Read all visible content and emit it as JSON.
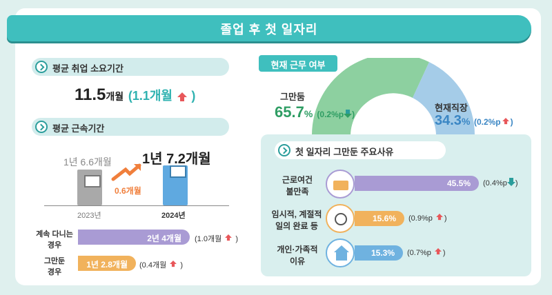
{
  "header": {
    "title": "졸업 후 첫 일자리"
  },
  "job_search": {
    "heading": "평균 취업 소요기간",
    "value": "11.5",
    "unit": "개월",
    "change": "(1.1개월",
    "change_close": ")"
  },
  "tenure": {
    "heading": "평균 근속기간",
    "prev": {
      "value": "1년 6.6개월",
      "year": "2023년"
    },
    "curr": {
      "value": "1년 7.2개월",
      "year": "2024년"
    },
    "diff": "0.6개월",
    "staying": {
      "label1": "계속 다니는",
      "label2": "경우",
      "value": "2년 4개월",
      "change": "(1.0개월"
    },
    "quit": {
      "label1": "그만둔",
      "label2": "경우",
      "value": "1년 2.8개월",
      "change": "(0.4개월"
    }
  },
  "employment": {
    "tag": "현재 근무 여부",
    "quit": {
      "label": "그만둠",
      "value": "65.7",
      "pct": "%",
      "change": "(0.2%p"
    },
    "current": {
      "label": "현재직장",
      "value": "34.3",
      "pct": "%",
      "change": "(0.2%p"
    }
  },
  "reasons": {
    "heading": "첫 일자리 그만둔 주요사유",
    "items": [
      {
        "label1": "근로여건",
        "label2": "불만족",
        "value": "45.5%",
        "change": "(0.4%p",
        "direction": "down"
      },
      {
        "label1": "임시적, 계절적",
        "label2": "일의 완료 등",
        "value": "15.6%",
        "change": "(0.9%p",
        "direction": "up"
      },
      {
        "label1": "개인·가족적",
        "label2": "이유",
        "value": "15.3%",
        "change": "(0.7%p",
        "direction": "up"
      }
    ]
  },
  "colors": {
    "teal": "#3fbfbe",
    "purple": "#a99bd4",
    "orange": "#f1b25c",
    "green": "#8dd0a0",
    "blue": "#6fb2e0",
    "red": "#e8575a"
  }
}
